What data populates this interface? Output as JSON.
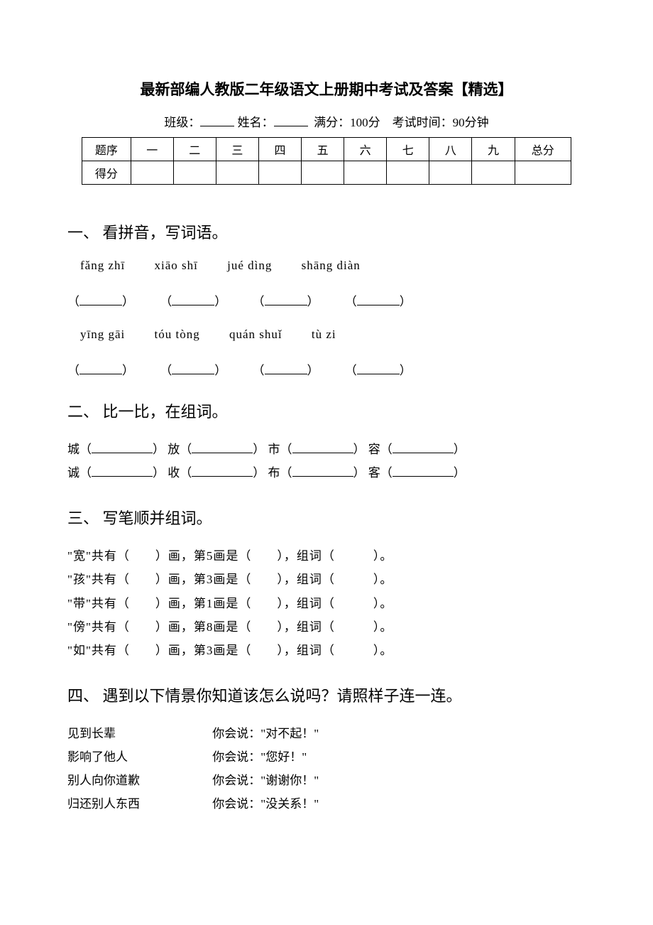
{
  "title": "最新部编人教版二年级语文上册期中考试及答案【精选】",
  "info": {
    "class_label": "班级：",
    "name_label": "姓名：",
    "fullscore_label": "满分：100分",
    "time_label": "考试时间：90分钟"
  },
  "score_table": {
    "row1_label": "题序",
    "headers": [
      "一",
      "二",
      "三",
      "四",
      "五",
      "六",
      "七",
      "八",
      "九",
      "总分"
    ],
    "row2_label": "得分"
  },
  "q1": {
    "heading": "一、 看拼音，写词语。",
    "pinyin_row1": [
      "fǎng zhī",
      "xiāo shī",
      "jué dìng",
      "shāng diàn"
    ],
    "pinyin_row2": [
      "yīng gāi",
      "tóu tòng",
      "quán shuǐ",
      "tù zi"
    ]
  },
  "q2": {
    "heading": "二、 比一比，在组词。",
    "pairs": [
      [
        "城",
        "放",
        "市",
        "容"
      ],
      [
        "诚",
        "收",
        "布",
        "客"
      ]
    ]
  },
  "q3": {
    "heading": "三、 写笔顺并组词。",
    "items": [
      {
        "char": "宽",
        "stroke_q": "第5画是"
      },
      {
        "char": "孩",
        "stroke_q": "第3画是"
      },
      {
        "char": "带",
        "stroke_q": "第1画是"
      },
      {
        "char": "傍",
        "stroke_q": "第8画是"
      },
      {
        "char": "如",
        "stroke_q": "第3画是"
      }
    ],
    "tpl_mid1": "共有（　　）画，",
    "tpl_mid2": "（　　），组词（　　　）。"
  },
  "q4": {
    "heading": "四、 遇到以下情景你知道该怎么说吗？请照样子连一连。",
    "left": [
      "见到长辈",
      "影响了他人",
      "别人向你道歉",
      "归还别人东西"
    ],
    "say_prefix": "你会说：",
    "right": [
      "\"对不起！\"",
      "\"您好！\"",
      "\"谢谢你！\"",
      "\"没关系！\""
    ]
  }
}
